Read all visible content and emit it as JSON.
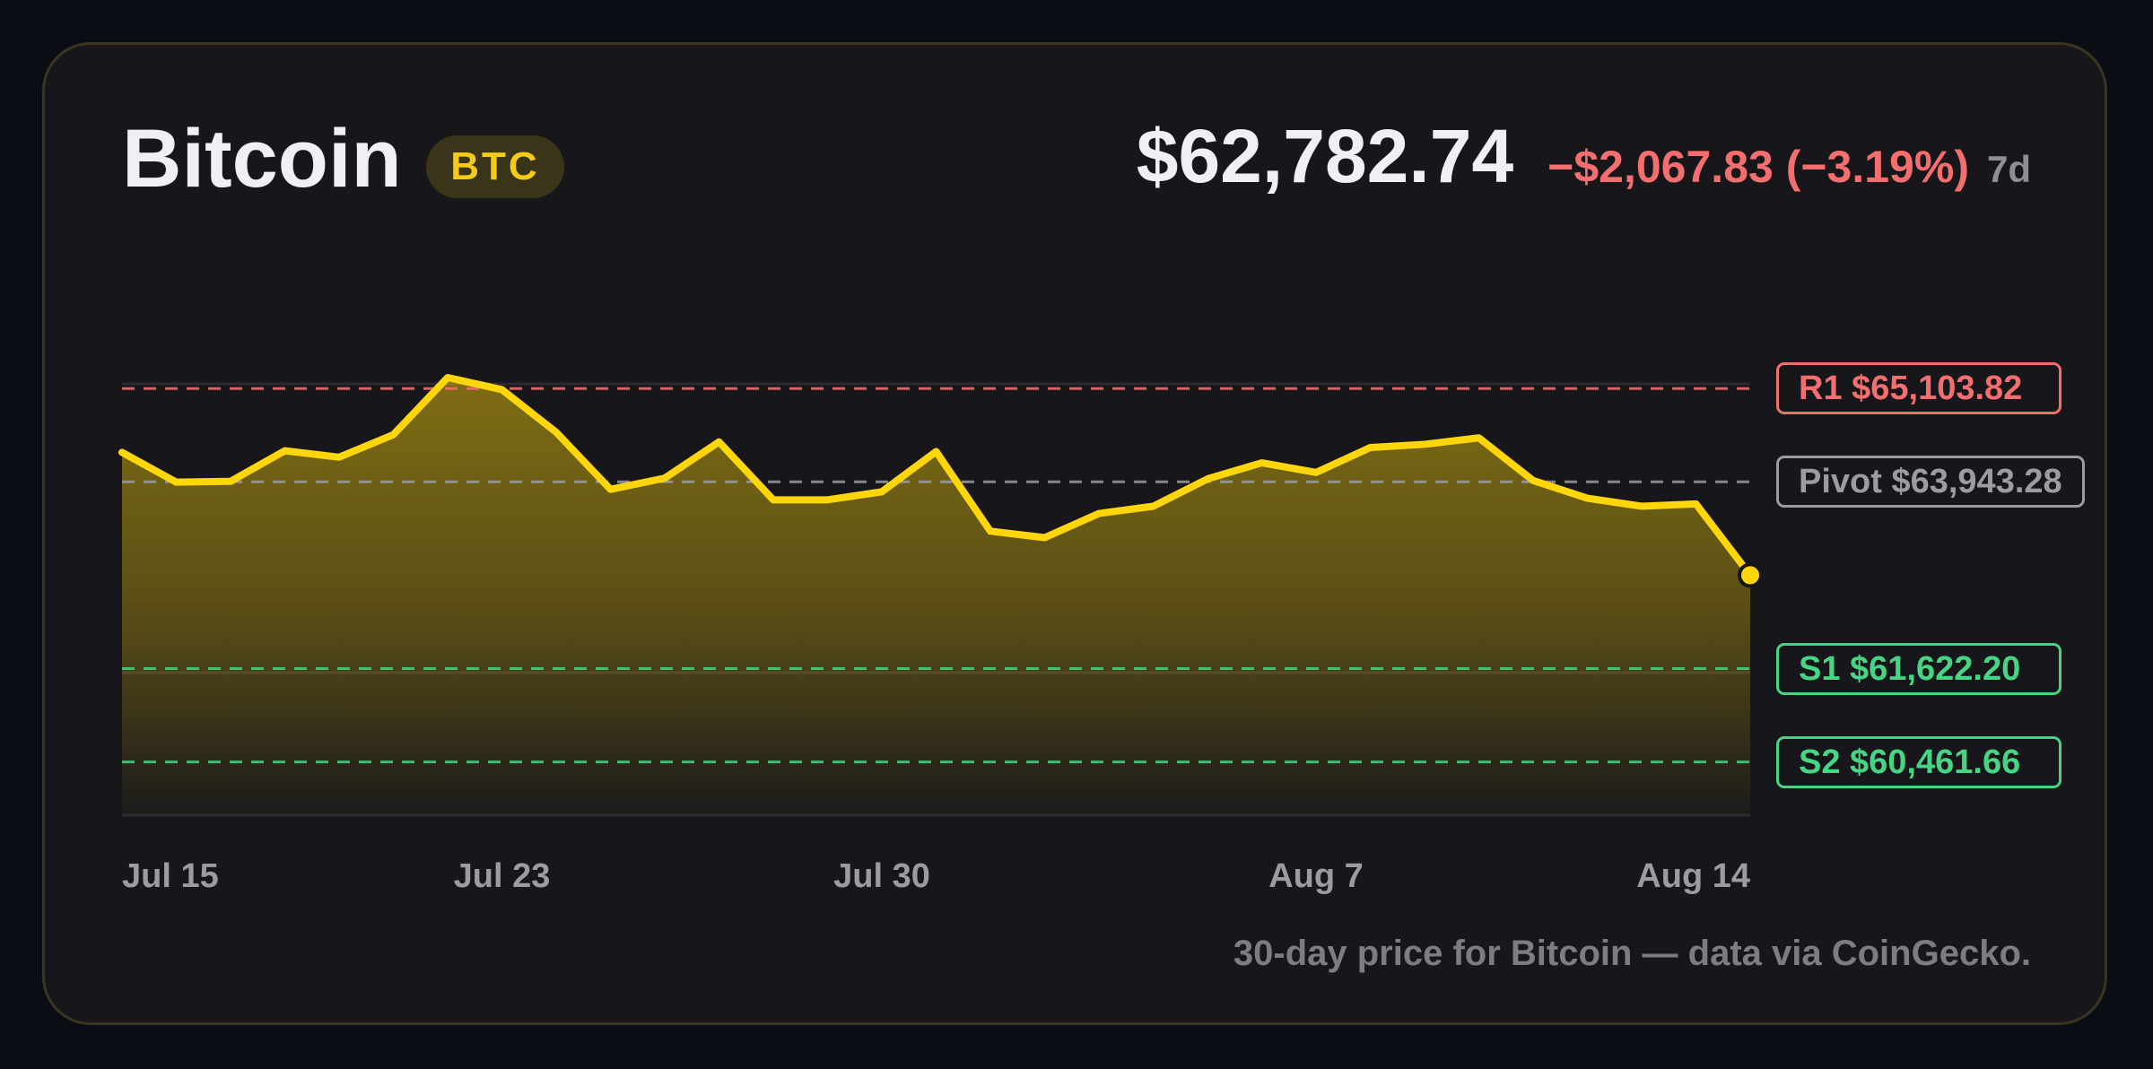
{
  "header": {
    "name": "Bitcoin",
    "ticker": "BTC",
    "price": "$62,782.74",
    "change": "−$2,067.83 (−3.19%)",
    "period": "7d"
  },
  "caption": "30-day price for Bitcoin — data via CoinGecko.",
  "colors": {
    "line": "#ffd60a",
    "resistance": "#f36e6e",
    "pivot": "#9a9ca2",
    "support": "#47d484",
    "background": "#17171b"
  },
  "chart_data": {
    "type": "area",
    "x_tick_labels": [
      "Jul 15",
      "Jul 23",
      "Jul 30",
      "Aug 7",
      "Aug 14"
    ],
    "x_tick_positions": [
      0,
      7,
      14,
      22,
      30
    ],
    "y_range": [
      59800,
      66700
    ],
    "grid": "horizontal",
    "series": [
      {
        "values": [
          64310,
          63940,
          63950,
          64330,
          64250,
          64530,
          65240,
          65090,
          64560,
          63850,
          63990,
          64440,
          63720,
          63720,
          63820,
          64320,
          63330,
          63250,
          63550,
          63640,
          63980,
          64180,
          64060,
          64370,
          64410,
          64490,
          63960,
          63740,
          63640,
          63670,
          62782.74
        ]
      }
    ],
    "levels": [
      {
        "label": "R1 $65,103.82",
        "value": 65103.82,
        "kind": "resistance"
      },
      {
        "label": "Pivot $63,943.28",
        "value": 63943.28,
        "kind": "pivot"
      },
      {
        "label": "S1 $61,622.20",
        "value": 61622.2,
        "kind": "support"
      },
      {
        "label": "S2 $60,461.66",
        "value": 60461.66,
        "kind": "support"
      }
    ]
  }
}
